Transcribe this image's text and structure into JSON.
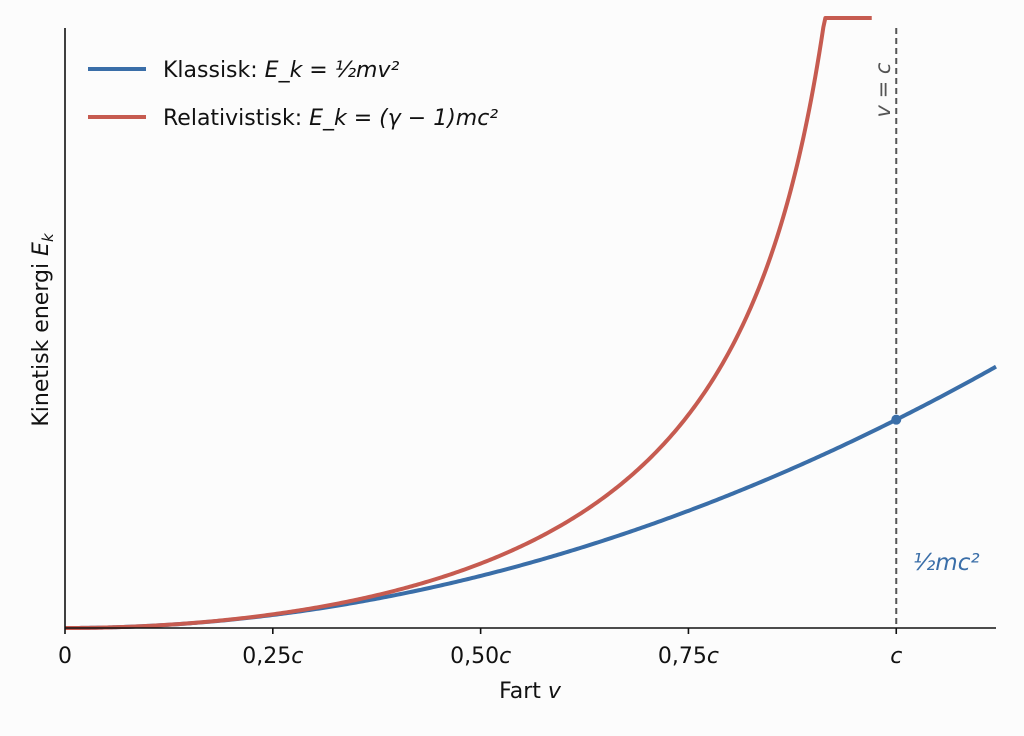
{
  "chart_data": {
    "type": "line",
    "xlabel_prefix": "Fart ",
    "xlabel_var": "v",
    "ylabel_prefix": "Kinetisk energi ",
    "ylabel_var": "E",
    "ylabel_sub": "k",
    "xlim": [
      0,
      1.12
    ],
    "ylim": [
      0,
      1.44
    ],
    "x_ticks": [
      {
        "value": 0,
        "num": "0",
        "unit": ""
      },
      {
        "value": 0.25,
        "num": "0,25",
        "unit": "c"
      },
      {
        "value": 0.5,
        "num": "0,50",
        "unit": "c"
      },
      {
        "value": 0.75,
        "num": "0,75",
        "unit": "c"
      },
      {
        "value": 1.0,
        "num": "",
        "unit": "c"
      }
    ],
    "series": [
      {
        "name": "Klassisk",
        "formula": "E_k = ½mv²",
        "expression": "0.5 * v^2",
        "color": "#3a6ea8",
        "x_range": [
          0,
          1.12
        ]
      },
      {
        "name": "Relativistisk",
        "formula": "E_k = (γ − 1)mc²",
        "expression": "1/sqrt(1 - v^2) - 1",
        "color": "#c65b50",
        "x_range": [
          0,
          0.9705
        ]
      }
    ],
    "vline": {
      "x": 1.0,
      "label": "v = c",
      "color": "#555555"
    },
    "point": {
      "x": 1.0,
      "y": 0.5,
      "label": "½mc²",
      "color": "#3a6ea8"
    },
    "legend_position": "top-left",
    "grid": false
  }
}
